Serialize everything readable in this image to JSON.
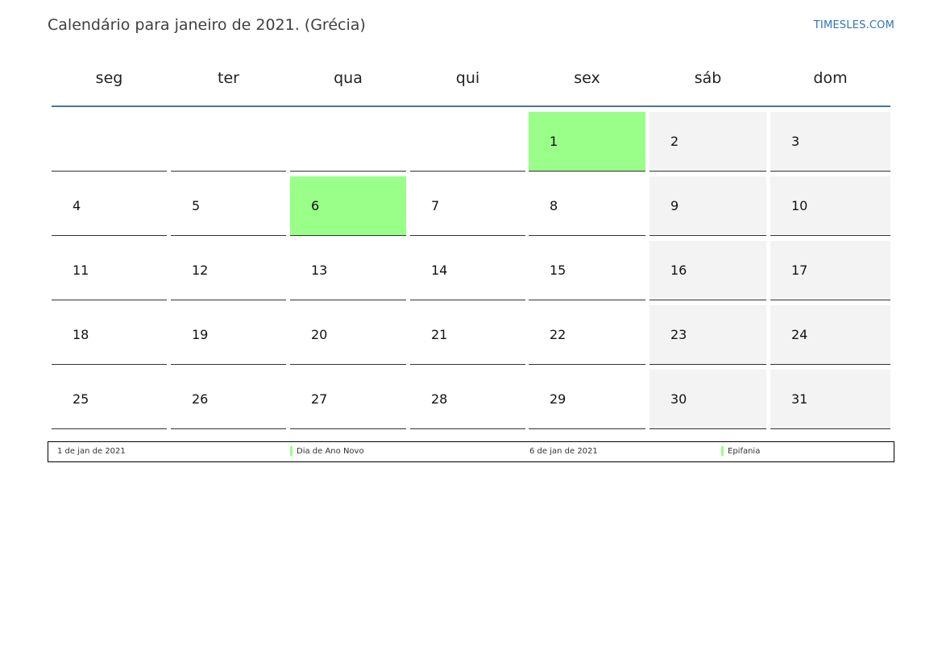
{
  "header": {
    "title": "Calendário para janeiro de 2021. (Grécia)",
    "brand": "TIMESLES.COM"
  },
  "weekdays": [
    "seg",
    "ter",
    "qua",
    "qui",
    "sex",
    "sáb",
    "dom"
  ],
  "calendar": {
    "first_weekday_offset": 4,
    "days_in_month": 31,
    "weekend_columns": [
      5,
      6
    ],
    "holiday_days": [
      1,
      6
    ],
    "holiday_color": "#99ff88",
    "weekend_color": "#f3f3f3",
    "header_rule_color": "#52729a"
  },
  "legend": {
    "entries": [
      {
        "date": "1 de jan de 2021",
        "name": "Dia de Ano Novo"
      },
      {
        "date": "6 de jan de 2021",
        "name": "Epifania"
      }
    ]
  }
}
